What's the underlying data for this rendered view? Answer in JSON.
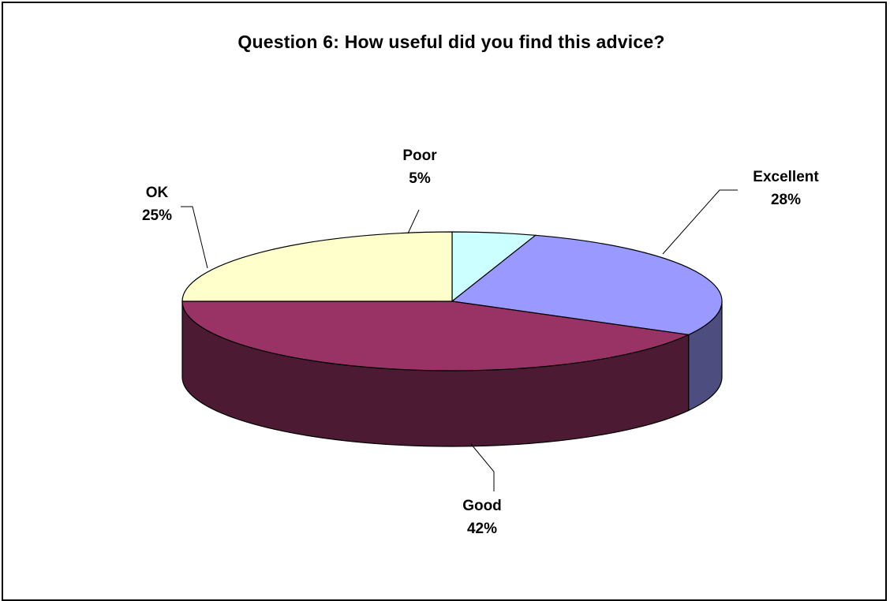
{
  "chart_data": {
    "type": "pie",
    "title": "Question 6: How useful did you find this advice?",
    "slices": [
      {
        "label": "Poor",
        "percent_label": "5%",
        "value": 5,
        "color": "#ccffff",
        "side_color": "#7f9999"
      },
      {
        "label": "Excellent",
        "percent_label": "28%",
        "value": 28,
        "color": "#9999ff",
        "side_color": "#4d4d80"
      },
      {
        "label": "Good",
        "percent_label": "42%",
        "value": 42,
        "color": "#993366",
        "side_color": "#4d1a33"
      },
      {
        "label": "OK",
        "percent_label": "25%",
        "value": 25,
        "color": "#ffffcc",
        "side_color": "#808066"
      }
    ],
    "style": "3d-pie",
    "legend": "none"
  }
}
